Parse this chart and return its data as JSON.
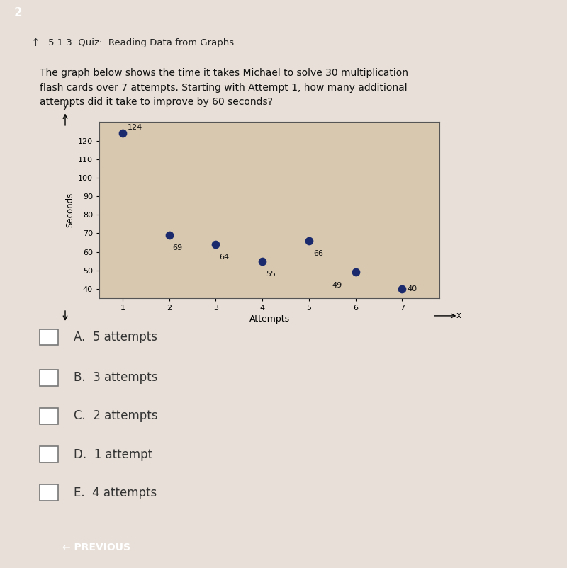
{
  "title_bar": "5.1.3  Quiz:  Reading Data from Graphs",
  "question": "The graph below shows the time it takes Michael to solve 30 multiplication\nflash cards over 7 attempts. Starting with Attempt 1, how many additional\nattempts did it take to improve by 60 seconds?",
  "attempts": [
    1,
    2,
    3,
    4,
    5,
    6,
    7
  ],
  "seconds": [
    124,
    69,
    64,
    55,
    66,
    49,
    40
  ],
  "xlabel": "Attempts",
  "ylabel": "Seconds",
  "yticks": [
    40,
    50,
    60,
    70,
    80,
    90,
    100,
    110,
    120
  ],
  "xticks": [
    1,
    2,
    3,
    4,
    5,
    6,
    7
  ],
  "ylim": [
    35,
    130
  ],
  "xlim": [
    0.5,
    7.8
  ],
  "dot_color": "#1a2a6c",
  "dot_size": 55,
  "label_fontsize": 8,
  "axis_fontsize": 8,
  "plot_bg_color": "#d8c8b0",
  "choices": [
    "A.  5 attempts",
    "B.  3 attempts",
    "C.  2 attempts",
    "D.  1 attempt",
    "E.  4 attempts"
  ],
  "page_number": "2",
  "page_bg": "#1a1a1a",
  "header_bg": "#c8a870",
  "content_bg": "#e8e0d8",
  "button_color": "#3dbdc4",
  "button_text": "← PREVIOUS",
  "label_offsets_x": [
    0.1,
    0.07,
    0.07,
    0.07,
    0.1,
    -0.5,
    0.1
  ],
  "label_offsets_y": [
    3,
    -7,
    -7,
    -7,
    -7,
    -7,
    0
  ]
}
